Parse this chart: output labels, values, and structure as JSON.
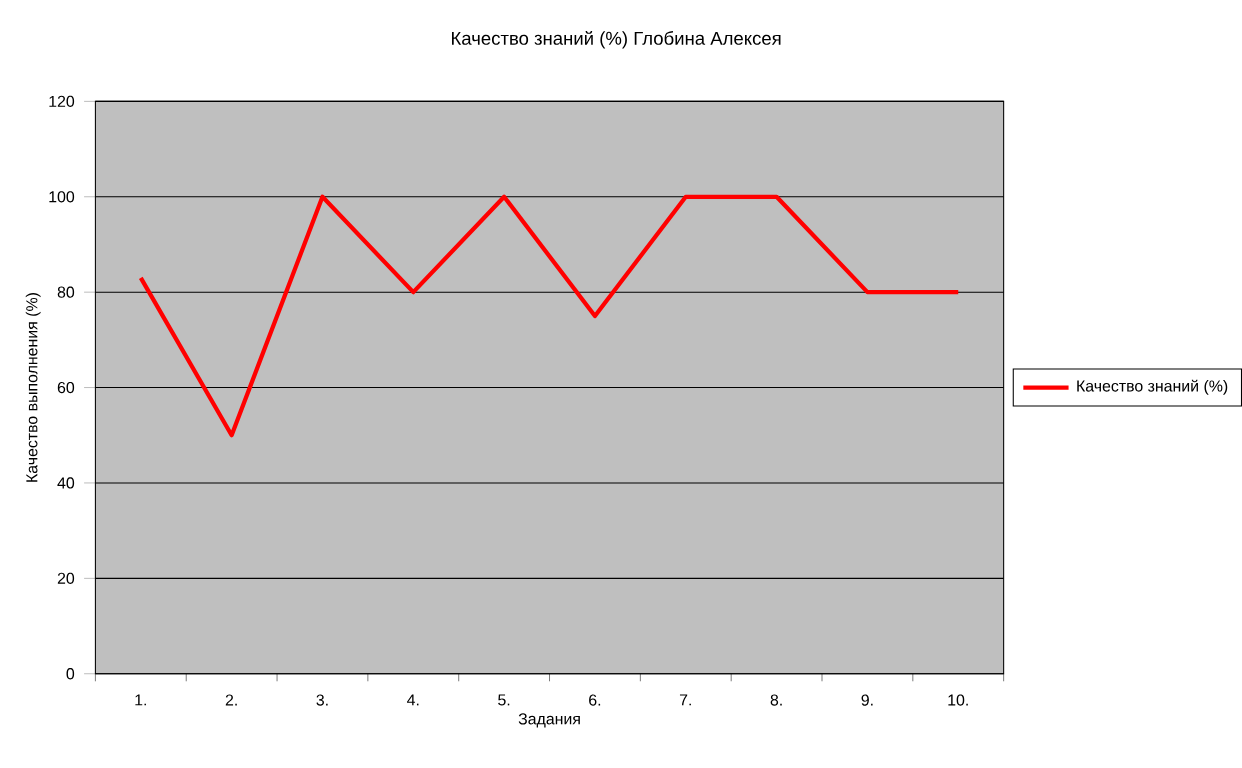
{
  "chart_data": {
    "type": "line",
    "title": "Качество  знаний (%) Глобина  Алексея",
    "xlabel": "Задания",
    "ylabel": "Качество выполнения (%)",
    "categories": [
      "1.",
      "2.",
      "3.",
      "4.",
      "5.",
      "6.",
      "7.",
      "8.",
      "9.",
      "10."
    ],
    "series": [
      {
        "name": "Качество знаний (%)",
        "color": "#ff0000",
        "values": [
          83,
          50,
          100,
          80,
          100,
          75,
          100,
          100,
          80,
          80
        ]
      }
    ],
    "ylim": [
      0,
      120
    ],
    "yticks": [
      0,
      20,
      40,
      60,
      80,
      100,
      120
    ],
    "grid": "y",
    "legend": "right",
    "marker": "none",
    "line_style": "solid"
  }
}
